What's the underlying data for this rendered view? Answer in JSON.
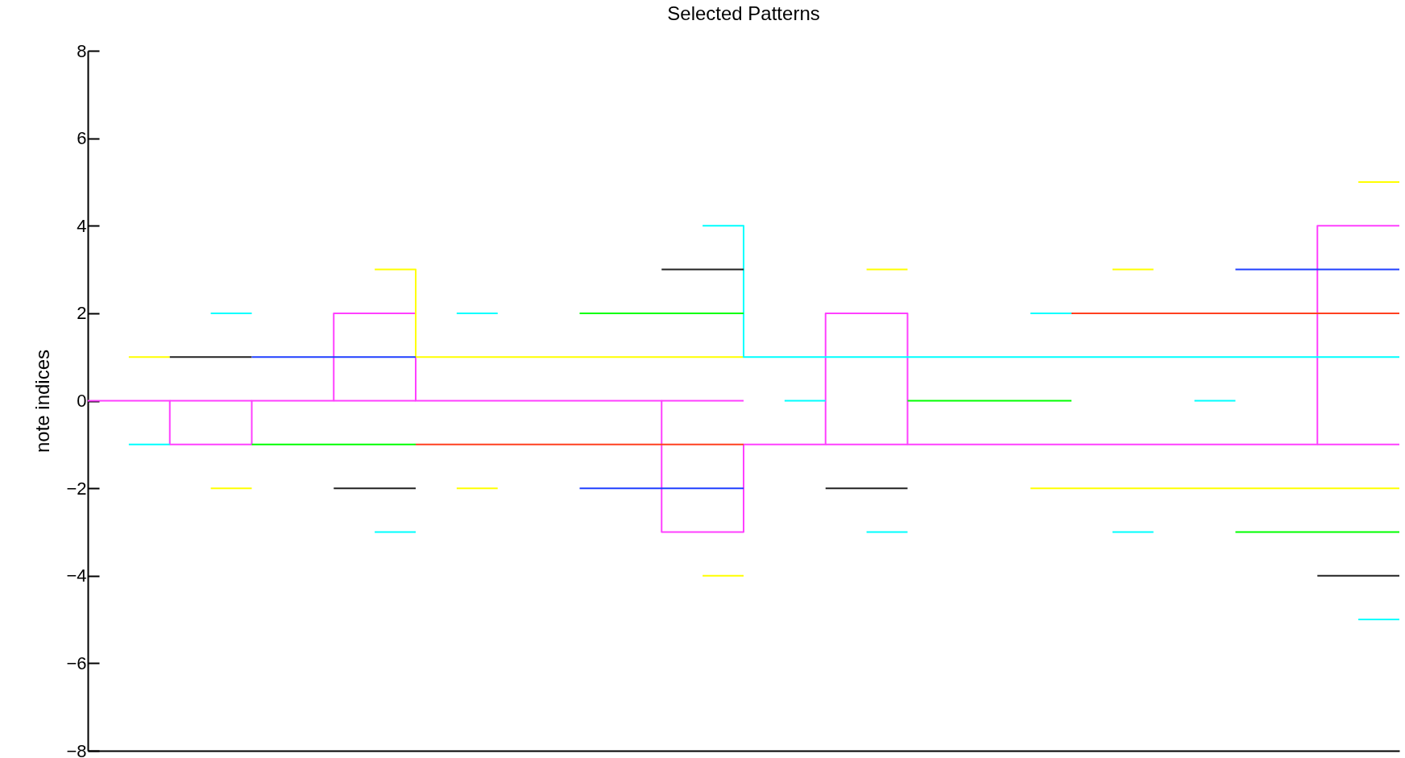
{
  "chart_data": {
    "type": "step",
    "title": "Selected Patterns",
    "ylabel": "note indices",
    "categories": [
      null,
      null,
      null,
      null,
      null,
      null,
      null,
      null,
      null,
      null,
      null,
      null,
      null,
      null,
      null,
      null,
      null,
      null,
      null,
      null,
      null,
      null,
      null,
      null,
      null,
      null,
      null,
      null,
      null,
      null,
      null,
      null,
      null
    ],
    "ylim": [
      -8,
      8
    ],
    "yticks": [
      -8,
      -6,
      -4,
      -2,
      0,
      2,
      4,
      6,
      8
    ],
    "tick_labels": "y",
    "series": [
      {
        "color": "#ff40ff",
        "values": [
          null,
          null,
          0,
          0,
          0,
          null,
          0,
          0,
          0,
          null,
          null,
          null,
          null,
          null,
          0,
          0,
          0,
          null,
          -1,
          -1,
          -1,
          null,
          null,
          null,
          null,
          null,
          null,
          null,
          null,
          null,
          -1,
          -1,
          -1
        ]
      },
      {
        "color": "#ff40ff",
        "values": [
          0,
          0,
          -1,
          -1,
          0,
          0,
          2,
          2,
          0,
          0,
          0,
          0,
          0,
          0,
          -3,
          -3,
          -1,
          -1,
          2,
          2,
          -1,
          -1,
          -1,
          -1,
          -1,
          -1,
          -1,
          -1,
          -1,
          -1,
          4,
          4,
          4
        ]
      },
      {
        "color": "#ffff00",
        "values": [
          null,
          1,
          1,
          null,
          null,
          null,
          null,
          3,
          1,
          1,
          1,
          1,
          1,
          1,
          1,
          1,
          1,
          null,
          null,
          3,
          3,
          null,
          null,
          -2,
          -2,
          -2,
          -2,
          -2,
          -2,
          -2,
          -2,
          -2,
          -2
        ]
      },
      {
        "color": "#ffff00",
        "values": [
          null,
          null,
          null,
          -2,
          -2,
          null,
          null,
          null,
          null,
          -2,
          -2,
          null,
          null,
          null,
          null,
          -4,
          -4,
          null,
          null,
          null,
          null,
          null,
          null,
          null,
          null,
          3,
          3,
          null,
          null,
          null,
          null,
          5,
          5
        ]
      },
      {
        "color": "#00ffff",
        "values": [
          null,
          -1,
          -1,
          null,
          null,
          null,
          null,
          -3,
          -3,
          null,
          null,
          null,
          null,
          null,
          null,
          4,
          1,
          1,
          1,
          1,
          1,
          1,
          1,
          1,
          1,
          1,
          1,
          1,
          1,
          1,
          1,
          1,
          1
        ]
      },
      {
        "color": "#00ffff",
        "values": [
          null,
          null,
          null,
          2,
          2,
          null,
          null,
          null,
          null,
          2,
          2,
          null,
          null,
          null,
          null,
          null,
          null,
          0,
          0,
          null,
          null,
          null,
          null,
          2,
          2,
          null,
          null,
          0,
          0,
          null,
          null,
          -5,
          -5
        ]
      },
      {
        "color": "#00ffff",
        "values": [
          null,
          null,
          null,
          null,
          null,
          null,
          null,
          null,
          null,
          null,
          null,
          null,
          null,
          null,
          null,
          null,
          null,
          null,
          null,
          -3,
          -3,
          null,
          null,
          null,
          null,
          -3,
          -3,
          null,
          null,
          null,
          null,
          null,
          null
        ]
      },
      {
        "color": "#222222",
        "values": [
          null,
          null,
          1,
          1,
          1,
          null,
          -2,
          -2,
          -2,
          null,
          null,
          null,
          null,
          null,
          3,
          3,
          3,
          null,
          -2,
          -2,
          -2,
          null,
          null,
          null,
          null,
          null,
          null,
          null,
          null,
          null,
          -4,
          -4,
          -4
        ]
      },
      {
        "color": "#2040ff",
        "values": [
          null,
          null,
          null,
          null,
          1,
          1,
          1,
          1,
          1,
          null,
          null,
          null,
          -2,
          -2,
          -2,
          -2,
          -2,
          null,
          null,
          null,
          null,
          null,
          null,
          null,
          null,
          null,
          null,
          null,
          3,
          3,
          3,
          3,
          3
        ]
      },
      {
        "color": "#00ff00",
        "values": [
          null,
          null,
          null,
          null,
          -1,
          -1,
          -1,
          -1,
          -1,
          null,
          null,
          null,
          2,
          2,
          2,
          2,
          2,
          null,
          null,
          null,
          0,
          0,
          0,
          0,
          0,
          null,
          null,
          null,
          -3,
          -3,
          -3,
          -3,
          -3
        ]
      },
      {
        "color": "#ff4020",
        "values": [
          null,
          null,
          null,
          null,
          null,
          null,
          null,
          null,
          -1,
          -1,
          -1,
          -1,
          -1,
          -1,
          -1,
          -1,
          -1,
          null,
          null,
          null,
          null,
          null,
          null,
          null,
          2,
          2,
          2,
          2,
          2,
          2,
          2,
          2,
          2
        ]
      }
    ]
  }
}
